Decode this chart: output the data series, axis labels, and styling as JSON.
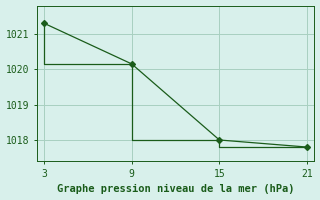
{
  "line1_x": [
    3,
    9,
    15,
    21
  ],
  "line1_y": [
    1021.3,
    1020.15,
    1018.0,
    1017.8
  ],
  "line2_x": [
    3,
    9,
    15,
    21
  ],
  "line2_y": [
    1021.3,
    1020.15,
    1018.0,
    1017.8
  ],
  "line_color": "#1a5c1a",
  "marker": "D",
  "markersize": 3,
  "xlabel": "Graphe pression niveau de la mer (hPa)",
  "xticks": [
    3,
    9,
    15,
    21
  ],
  "yticks": [
    1018,
    1019,
    1020,
    1021
  ],
  "xlim": [
    2.5,
    21.5
  ],
  "ylim": [
    1017.4,
    1021.8
  ],
  "bg_color": "#d8f0eb",
  "grid_color": "#a8cfc0",
  "xlabel_fontsize": 7.5,
  "tick_fontsize": 7
}
